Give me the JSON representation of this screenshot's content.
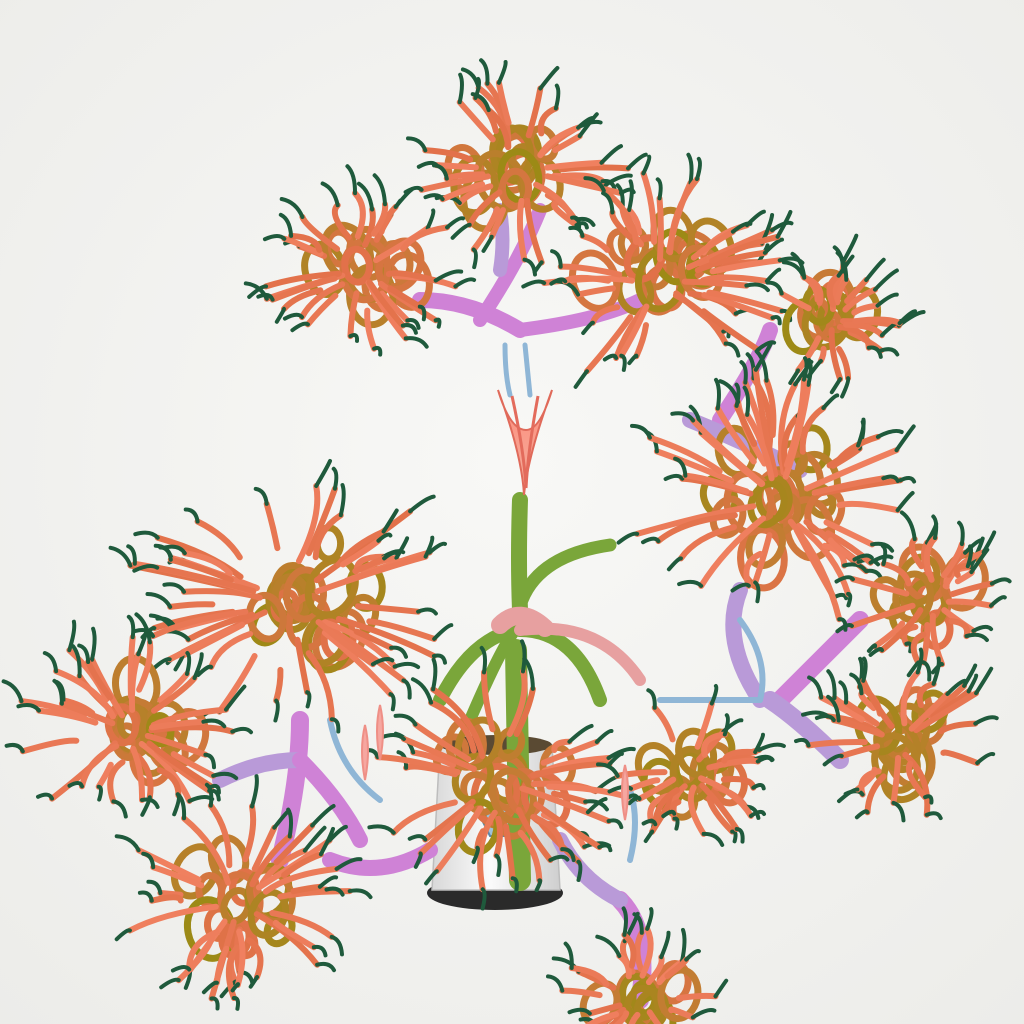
{
  "scene": {
    "subject": "stylized-3d-plant",
    "background_color": "#f4f4f2",
    "palette": {
      "stem_green": "#7aa63a",
      "stem_pink": "#e7a0a0",
      "stem_purple": "#cf82d6",
      "stem_violet": "#b99ad8",
      "stem_blue": "#8fb6d6",
      "curl_olive": "#9c8a16",
      "curl_orange": "#e2714a",
      "tip_green": "#1f5a3c",
      "pot_white": "#eeeeee",
      "pot_base": "#2a2a2a"
    }
  }
}
